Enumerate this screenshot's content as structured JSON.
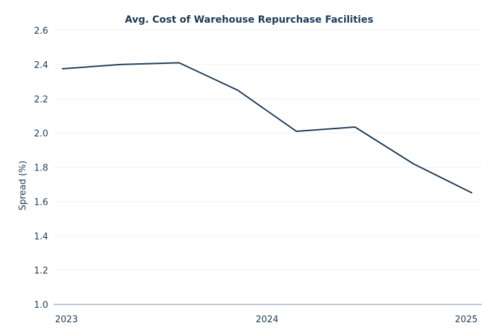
{
  "chart_data": {
    "type": "line",
    "title": "Avg. Cost of Warehouse Repurchase Facilities",
    "xlabel": "",
    "ylabel": "Spread (%)",
    "x_tick_labels": [
      "2023",
      "2024",
      "2025"
    ],
    "x_tick_values": [
      2023,
      2024,
      2025
    ],
    "y_ticks": [
      "1.0",
      "1.2",
      "1.4",
      "1.6",
      "1.8",
      "2.0",
      "2.2",
      "2.4",
      "2.6"
    ],
    "ylim": [
      1.0,
      2.6
    ],
    "xlim": [
      2023,
      2025
    ],
    "grid": true,
    "legend": "none",
    "series": [
      {
        "color": "#1c3a57",
        "x": [
          2023.0,
          2023.286,
          2023.571,
          2023.857,
          2024.143,
          2024.429,
          2024.714,
          2025.0
        ],
        "values": [
          2.375,
          2.4,
          2.41,
          2.25,
          2.01,
          2.035,
          1.82,
          1.65
        ]
      }
    ]
  }
}
